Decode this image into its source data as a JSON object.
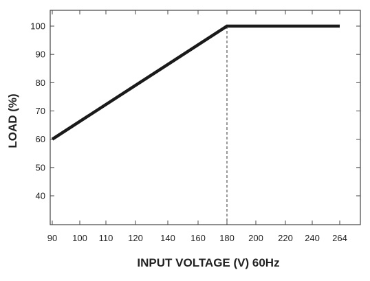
{
  "chart_data": {
    "type": "line",
    "title": "",
    "xlabel": "INPUT VOLTAGE (V) 60Hz",
    "ylabel": "LOAD (%)",
    "x_ticks": [
      90,
      100,
      110,
      120,
      140,
      160,
      180,
      200,
      220,
      240,
      264
    ],
    "y_ticks": [
      40,
      50,
      60,
      70,
      80,
      90,
      100
    ],
    "xlim": [
      90,
      264
    ],
    "ylim": [
      30,
      107
    ],
    "grid": false,
    "series": [
      {
        "x": [
          90,
          180,
          264
        ],
        "values": [
          60,
          100,
          100
        ]
      }
    ],
    "reference_lines": [
      {
        "x": 180,
        "style": "dashed",
        "from_y": 30,
        "to_y": 100
      }
    ],
    "colors": {
      "line": "#1a1a1a",
      "axis": "#444444"
    }
  }
}
